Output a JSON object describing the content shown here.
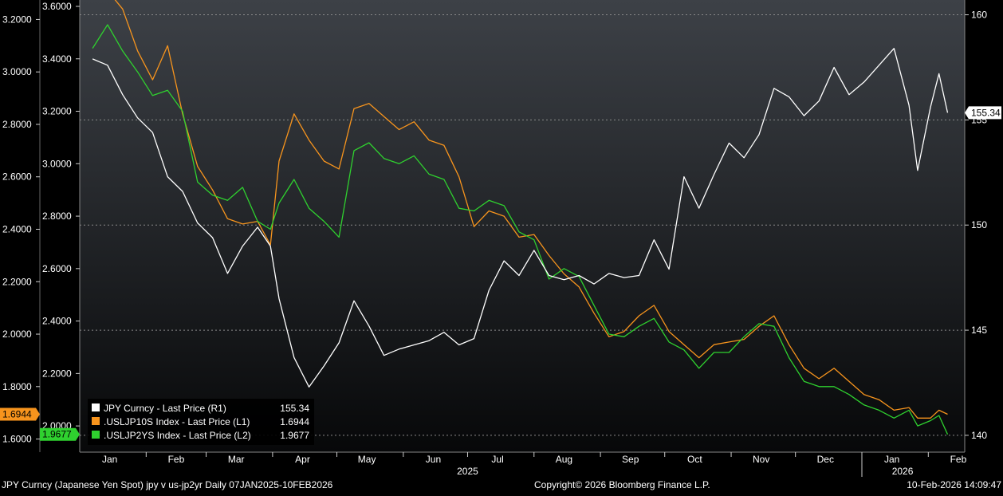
{
  "footer": {
    "left": "JPY Curncy (Japanese Yen Spot) jpy v us-jp2yr Daily 07JAN2025-10FEB2026",
    "center": "Copyright© 2026 Bloomberg Finance L.P.",
    "right": "10-Feb-2026 14:09:47"
  },
  "chart_data": {
    "type": "line",
    "colors": {
      "background": "#000000",
      "jpy": "#ffffff",
      "l1": "#f7941d",
      "l2": "#2fd12f",
      "grid": "#8a8a8a"
    },
    "x_axis": {
      "months": [
        "Jan",
        "Feb",
        "Mar",
        "Apr",
        "May",
        "Jun",
        "Jul",
        "Aug",
        "Sep",
        "Oct",
        "Nov",
        "Dec",
        "Jan",
        "Feb"
      ],
      "years": [
        "2025",
        "2026"
      ]
    },
    "axes": {
      "left_outer": {
        "series": ".USLJP10S Index",
        "range": [
          1.55,
          3.25
        ],
        "ticks": [
          "3.2000",
          "3.0000",
          "2.8000",
          "2.6000",
          "2.4000",
          "2.2000",
          "2.0000",
          "1.8000",
          "1.6000"
        ]
      },
      "left_inner": {
        "series": ".USLJP2YS Index",
        "range": [
          1.9,
          3.6
        ],
        "ticks": [
          "3.6000",
          "3.4000",
          "3.2000",
          "3.0000",
          "2.8000",
          "2.6000",
          "2.4000",
          "2.2000",
          "2.0000"
        ]
      },
      "right": {
        "series": "JPY Curncy",
        "range": [
          139.2,
          160.4
        ],
        "ticks": [
          "160",
          "155",
          "150",
          "145",
          "140"
        ]
      }
    },
    "last_value_tags": {
      "left_outer": "1.6944",
      "left_inner": "1.9677",
      "right": "155.34"
    },
    "legend": {
      "placement": "bottom-left",
      "entries": [
        {
          "label": "JPY Curncy - Last Price (R1)",
          "value": "155.34",
          "color": "#ffffff"
        },
        {
          "label": ".USLJP10S Index - Last Price (L1)",
          "value": "1.6944",
          "color": "#f7941d"
        },
        {
          "label": ".USLJP2YS Index - Last Price (L2)",
          "value": "1.9677",
          "color": "#2fd12f"
        }
      ]
    },
    "series": [
      {
        "name": "JPY Curncy",
        "axis": "right",
        "points": [
          [
            "2025-01-07",
            157.9
          ],
          [
            "2025-01-14",
            157.6
          ],
          [
            "2025-01-21",
            156.2
          ],
          [
            "2025-01-28",
            155.1
          ],
          [
            "2025-02-04",
            154.4
          ],
          [
            "2025-02-11",
            152.3
          ],
          [
            "2025-02-18",
            151.6
          ],
          [
            "2025-02-25",
            150.1
          ],
          [
            "2025-03-04",
            149.4
          ],
          [
            "2025-03-11",
            147.7
          ],
          [
            "2025-03-18",
            149.0
          ],
          [
            "2025-03-25",
            149.9
          ],
          [
            "2025-03-31",
            149.0
          ],
          [
            "2025-04-04",
            146.5
          ],
          [
            "2025-04-11",
            143.7
          ],
          [
            "2025-04-18",
            142.3
          ],
          [
            "2025-04-25",
            143.3
          ],
          [
            "2025-05-02",
            144.4
          ],
          [
            "2025-05-09",
            146.4
          ],
          [
            "2025-05-16",
            145.2
          ],
          [
            "2025-05-23",
            143.8
          ],
          [
            "2025-05-30",
            144.1
          ],
          [
            "2025-06-06",
            144.3
          ],
          [
            "2025-06-13",
            144.5
          ],
          [
            "2025-06-20",
            144.9
          ],
          [
            "2025-06-27",
            144.3
          ],
          [
            "2025-07-04",
            144.6
          ],
          [
            "2025-07-11",
            146.9
          ],
          [
            "2025-07-18",
            148.3
          ],
          [
            "2025-07-25",
            147.6
          ],
          [
            "2025-08-01",
            148.8
          ],
          [
            "2025-08-08",
            147.6
          ],
          [
            "2025-08-15",
            147.4
          ],
          [
            "2025-08-22",
            147.6
          ],
          [
            "2025-08-29",
            147.2
          ],
          [
            "2025-09-05",
            147.7
          ],
          [
            "2025-09-12",
            147.5
          ],
          [
            "2025-09-19",
            147.6
          ],
          [
            "2025-09-26",
            149.3
          ],
          [
            "2025-10-03",
            147.9
          ],
          [
            "2025-10-10",
            152.3
          ],
          [
            "2025-10-17",
            150.8
          ],
          [
            "2025-10-24",
            152.4
          ],
          [
            "2025-10-31",
            153.9
          ],
          [
            "2025-11-07",
            153.2
          ],
          [
            "2025-11-14",
            154.3
          ],
          [
            "2025-11-21",
            156.5
          ],
          [
            "2025-11-28",
            156.1
          ],
          [
            "2025-12-05",
            155.2
          ],
          [
            "2025-12-12",
            155.9
          ],
          [
            "2025-12-19",
            157.5
          ],
          [
            "2025-12-26",
            156.2
          ],
          [
            "2026-01-02",
            156.8
          ],
          [
            "2026-01-09",
            157.6
          ],
          [
            "2026-01-16",
            158.4
          ],
          [
            "2026-01-23",
            155.7
          ],
          [
            "2026-01-27",
            152.6
          ],
          [
            "2026-02-02",
            155.6
          ],
          [
            "2026-02-06",
            157.2
          ],
          [
            "2026-02-10",
            155.34
          ]
        ]
      },
      {
        "name": ".USLJP10S Index",
        "axis": "left_outer",
        "points": [
          [
            "2025-01-07",
            3.28
          ],
          [
            "2025-01-14",
            3.31
          ],
          [
            "2025-01-21",
            3.24
          ],
          [
            "2025-01-28",
            3.08
          ],
          [
            "2025-02-04",
            2.97
          ],
          [
            "2025-02-11",
            3.1
          ],
          [
            "2025-02-18",
            2.84
          ],
          [
            "2025-02-25",
            2.64
          ],
          [
            "2025-03-04",
            2.55
          ],
          [
            "2025-03-11",
            2.44
          ],
          [
            "2025-03-18",
            2.42
          ],
          [
            "2025-03-25",
            2.43
          ],
          [
            "2025-03-31",
            2.34
          ],
          [
            "2025-04-04",
            2.66
          ],
          [
            "2025-04-11",
            2.84
          ],
          [
            "2025-04-18",
            2.74
          ],
          [
            "2025-04-25",
            2.66
          ],
          [
            "2025-05-02",
            2.63
          ],
          [
            "2025-05-09",
            2.86
          ],
          [
            "2025-05-16",
            2.88
          ],
          [
            "2025-05-23",
            2.83
          ],
          [
            "2025-05-30",
            2.78
          ],
          [
            "2025-06-06",
            2.81
          ],
          [
            "2025-06-13",
            2.74
          ],
          [
            "2025-06-20",
            2.72
          ],
          [
            "2025-06-27",
            2.6
          ],
          [
            "2025-07-04",
            2.41
          ],
          [
            "2025-07-11",
            2.47
          ],
          [
            "2025-07-18",
            2.45
          ],
          [
            "2025-07-25",
            2.37
          ],
          [
            "2025-08-01",
            2.38
          ],
          [
            "2025-08-08",
            2.3
          ],
          [
            "2025-08-15",
            2.23
          ],
          [
            "2025-08-22",
            2.18
          ],
          [
            "2025-08-29",
            2.08
          ],
          [
            "2025-09-05",
            1.99
          ],
          [
            "2025-09-12",
            2.01
          ],
          [
            "2025-09-19",
            2.07
          ],
          [
            "2025-09-26",
            2.11
          ],
          [
            "2025-10-03",
            2.01
          ],
          [
            "2025-10-10",
            1.96
          ],
          [
            "2025-10-17",
            1.91
          ],
          [
            "2025-10-24",
            1.96
          ],
          [
            "2025-10-31",
            1.97
          ],
          [
            "2025-11-07",
            1.98
          ],
          [
            "2025-11-14",
            2.03
          ],
          [
            "2025-11-21",
            2.07
          ],
          [
            "2025-11-28",
            1.96
          ],
          [
            "2025-12-05",
            1.87
          ],
          [
            "2025-12-12",
            1.83
          ],
          [
            "2025-12-19",
            1.87
          ],
          [
            "2025-12-26",
            1.82
          ],
          [
            "2026-01-02",
            1.77
          ],
          [
            "2026-01-09",
            1.75
          ],
          [
            "2026-01-16",
            1.71
          ],
          [
            "2026-01-23",
            1.72
          ],
          [
            "2026-01-27",
            1.68
          ],
          [
            "2026-02-02",
            1.68
          ],
          [
            "2026-02-06",
            1.71
          ],
          [
            "2026-02-10",
            1.6944
          ]
        ]
      },
      {
        "name": ".USLJP2YS Index",
        "axis": "left_inner",
        "points": [
          [
            "2025-01-07",
            3.44
          ],
          [
            "2025-01-14",
            3.53
          ],
          [
            "2025-01-21",
            3.43
          ],
          [
            "2025-01-28",
            3.35
          ],
          [
            "2025-02-04",
            3.26
          ],
          [
            "2025-02-11",
            3.28
          ],
          [
            "2025-02-18",
            3.2
          ],
          [
            "2025-02-25",
            2.93
          ],
          [
            "2025-03-04",
            2.88
          ],
          [
            "2025-03-11",
            2.86
          ],
          [
            "2025-03-18",
            2.91
          ],
          [
            "2025-03-25",
            2.78
          ],
          [
            "2025-03-31",
            2.75
          ],
          [
            "2025-04-04",
            2.85
          ],
          [
            "2025-04-11",
            2.94
          ],
          [
            "2025-04-18",
            2.83
          ],
          [
            "2025-04-25",
            2.78
          ],
          [
            "2025-05-02",
            2.72
          ],
          [
            "2025-05-09",
            3.05
          ],
          [
            "2025-05-16",
            3.08
          ],
          [
            "2025-05-23",
            3.02
          ],
          [
            "2025-05-30",
            3.0
          ],
          [
            "2025-06-06",
            3.03
          ],
          [
            "2025-06-13",
            2.96
          ],
          [
            "2025-06-20",
            2.94
          ],
          [
            "2025-06-27",
            2.83
          ],
          [
            "2025-07-04",
            2.82
          ],
          [
            "2025-07-11",
            2.86
          ],
          [
            "2025-07-18",
            2.84
          ],
          [
            "2025-07-25",
            2.74
          ],
          [
            "2025-08-01",
            2.71
          ],
          [
            "2025-08-08",
            2.56
          ],
          [
            "2025-08-15",
            2.6
          ],
          [
            "2025-08-22",
            2.57
          ],
          [
            "2025-08-29",
            2.46
          ],
          [
            "2025-09-05",
            2.35
          ],
          [
            "2025-09-12",
            2.34
          ],
          [
            "2025-09-19",
            2.38
          ],
          [
            "2025-09-26",
            2.41
          ],
          [
            "2025-10-03",
            2.32
          ],
          [
            "2025-10-10",
            2.29
          ],
          [
            "2025-10-17",
            2.22
          ],
          [
            "2025-10-24",
            2.28
          ],
          [
            "2025-10-31",
            2.28
          ],
          [
            "2025-11-07",
            2.34
          ],
          [
            "2025-11-14",
            2.39
          ],
          [
            "2025-11-21",
            2.38
          ],
          [
            "2025-11-28",
            2.26
          ],
          [
            "2025-12-05",
            2.17
          ],
          [
            "2025-12-12",
            2.15
          ],
          [
            "2025-12-19",
            2.15
          ],
          [
            "2025-12-26",
            2.12
          ],
          [
            "2026-01-02",
            2.08
          ],
          [
            "2026-01-09",
            2.06
          ],
          [
            "2026-01-16",
            2.03
          ],
          [
            "2026-01-23",
            2.06
          ],
          [
            "2026-01-27",
            2.0
          ],
          [
            "2026-02-02",
            2.02
          ],
          [
            "2026-02-06",
            2.04
          ],
          [
            "2026-02-10",
            1.9677
          ]
        ]
      }
    ]
  }
}
